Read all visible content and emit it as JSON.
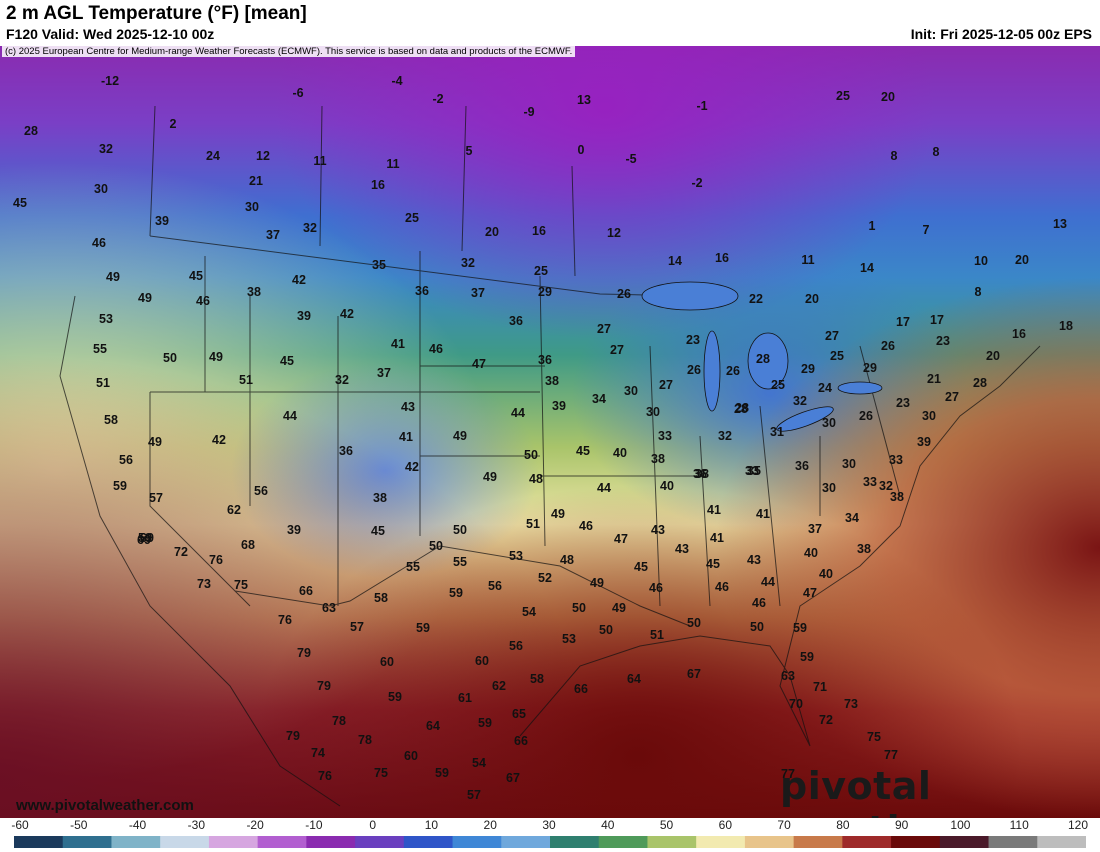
{
  "header": {
    "title": "2 m AGL Temperature (°F) [mean]",
    "valid": "F120 Valid: Wed 2025-12-10 00z",
    "init": "Init: Fri 2025-12-05 00z EPS",
    "copyright": "(c) 2025 European Centre for Medium-range Weather Forecasts (ECMWF). This service is based on data and products of the ECMWF."
  },
  "branding": {
    "site": "www.pivotalweather.com",
    "logo": "pivotal weather"
  },
  "legend": {
    "ticks": [
      "-60",
      "-50",
      "-40",
      "-30",
      "-20",
      "-10",
      "0",
      "10",
      "20",
      "30",
      "40",
      "50",
      "60",
      "70",
      "80",
      "90",
      "100",
      "110",
      "120"
    ],
    "colors": [
      "#1b3a5c",
      "#2f6f8f",
      "#7fb3c8",
      "#c8d8e8",
      "#d6a6e0",
      "#b25fd0",
      "#8a2bb0",
      "#6a3fbf",
      "#2f55c8",
      "#3f87d6",
      "#6fa8dc",
      "#2f7f6f",
      "#4f9a5a",
      "#a9c46a",
      "#f2eab0",
      "#e8c48a",
      "#c87a4a",
      "#9e2a2a",
      "#6a0a0a",
      "#4a1a2a",
      "#7a7a7a",
      "#bdbdbd"
    ]
  },
  "temps": [
    {
      "v": "-12"
    },
    {
      "v": "2"
    },
    {
      "v": "-6"
    },
    {
      "v": "-4"
    },
    {
      "v": "-2"
    },
    {
      "v": "-9"
    },
    {
      "v": "13"
    },
    {
      "v": "-1"
    },
    {
      "v": "25"
    },
    {
      "v": "20"
    },
    {
      "v": "28"
    },
    {
      "v": "32"
    },
    {
      "v": "24"
    },
    {
      "v": "12"
    },
    {
      "v": "11"
    },
    {
      "v": "11"
    },
    {
      "v": "5"
    },
    {
      "v": "0"
    },
    {
      "v": "-5"
    },
    {
      "v": "8"
    },
    {
      "v": "8"
    },
    {
      "v": "30"
    },
    {
      "v": "21"
    },
    {
      "v": "16"
    },
    {
      "v": "-2"
    },
    {
      "v": "45"
    },
    {
      "v": "30"
    },
    {
      "v": "39"
    },
    {
      "v": "25"
    },
    {
      "v": "20"
    },
    {
      "v": "16"
    },
    {
      "v": "12"
    },
    {
      "v": "1"
    },
    {
      "v": "7"
    },
    {
      "v": "13"
    },
    {
      "v": "37"
    },
    {
      "v": "32"
    },
    {
      "v": "46"
    },
    {
      "v": "16"
    },
    {
      "v": "14"
    },
    {
      "v": "11"
    },
    {
      "v": "14"
    },
    {
      "v": "10"
    },
    {
      "v": "20"
    },
    {
      "v": "49"
    },
    {
      "v": "45"
    },
    {
      "v": "42"
    },
    {
      "v": "35"
    },
    {
      "v": "32"
    },
    {
      "v": "25"
    },
    {
      "v": "49"
    },
    {
      "v": "38"
    },
    {
      "v": "36"
    },
    {
      "v": "37"
    },
    {
      "v": "29"
    },
    {
      "v": "26"
    },
    {
      "v": "22"
    },
    {
      "v": "20"
    },
    {
      "v": "8"
    },
    {
      "v": "53"
    },
    {
      "v": "46"
    },
    {
      "v": "39"
    },
    {
      "v": "42"
    },
    {
      "v": "36"
    },
    {
      "v": "27"
    },
    {
      "v": "17"
    },
    {
      "v": "17"
    },
    {
      "v": "55"
    },
    {
      "v": "50"
    },
    {
      "v": "49"
    },
    {
      "v": "45"
    },
    {
      "v": "41"
    },
    {
      "v": "46"
    },
    {
      "v": "36"
    },
    {
      "v": "27"
    },
    {
      "v": "23"
    },
    {
      "v": "27"
    },
    {
      "v": "23"
    },
    {
      "v": "16"
    },
    {
      "v": "18"
    },
    {
      "v": "51"
    },
    {
      "v": "51"
    },
    {
      "v": "32"
    },
    {
      "v": "37"
    },
    {
      "v": "47"
    },
    {
      "v": "26"
    },
    {
      "v": "28"
    },
    {
      "v": "26"
    },
    {
      "v": "25"
    },
    {
      "v": "26"
    },
    {
      "v": "20"
    },
    {
      "v": "58"
    },
    {
      "v": "44"
    },
    {
      "v": "43"
    },
    {
      "v": "38"
    },
    {
      "v": "30"
    },
    {
      "v": "27"
    },
    {
      "v": "29"
    },
    {
      "v": "28"
    },
    {
      "v": "25"
    },
    {
      "v": "29"
    },
    {
      "v": "21"
    },
    {
      "v": "28"
    },
    {
      "v": "49"
    },
    {
      "v": "42"
    },
    {
      "v": "41"
    },
    {
      "v": "49"
    },
    {
      "v": "44"
    },
    {
      "v": "39"
    },
    {
      "v": "34"
    },
    {
      "v": "30"
    },
    {
      "v": "28"
    },
    {
      "v": "32"
    },
    {
      "v": "24"
    },
    {
      "v": "23"
    },
    {
      "v": "27"
    },
    {
      "v": "56"
    },
    {
      "v": "36"
    },
    {
      "v": "42"
    },
    {
      "v": "50"
    },
    {
      "v": "45"
    },
    {
      "v": "40"
    },
    {
      "v": "33"
    },
    {
      "v": "32"
    },
    {
      "v": "31"
    },
    {
      "v": "30"
    },
    {
      "v": "26"
    },
    {
      "v": "30"
    },
    {
      "v": "59"
    },
    {
      "v": "49"
    },
    {
      "v": "48"
    },
    {
      "v": "38"
    },
    {
      "v": "38"
    },
    {
      "v": "33"
    },
    {
      "v": "35"
    },
    {
      "v": "36"
    },
    {
      "v": "30"
    },
    {
      "v": "33"
    },
    {
      "v": "39"
    },
    {
      "v": "57"
    },
    {
      "v": "56"
    },
    {
      "v": "38"
    },
    {
      "v": "44"
    },
    {
      "v": "40"
    },
    {
      "v": "36"
    },
    {
      "v": "30"
    },
    {
      "v": "33"
    },
    {
      "v": "32"
    },
    {
      "v": "62"
    },
    {
      "v": "39"
    },
    {
      "v": "45"
    },
    {
      "v": "50"
    },
    {
      "v": "51"
    },
    {
      "v": "49"
    },
    {
      "v": "46"
    },
    {
      "v": "41"
    },
    {
      "v": "41"
    },
    {
      "v": "34"
    },
    {
      "v": "38"
    },
    {
      "v": "59"
    },
    {
      "v": "69"
    },
    {
      "v": "72"
    },
    {
      "v": "76"
    },
    {
      "v": "68"
    },
    {
      "v": "50"
    },
    {
      "v": "47"
    },
    {
      "v": "43"
    },
    {
      "v": "43"
    },
    {
      "v": "41"
    },
    {
      "v": "37"
    },
    {
      "v": "69"
    },
    {
      "v": "55"
    },
    {
      "v": "55"
    },
    {
      "v": "53"
    },
    {
      "v": "48"
    },
    {
      "v": "45"
    },
    {
      "v": "45"
    },
    {
      "v": "43"
    },
    {
      "v": "40"
    },
    {
      "v": "38"
    },
    {
      "v": "73"
    },
    {
      "v": "75"
    },
    {
      "v": "66"
    },
    {
      "v": "52"
    },
    {
      "v": "49"
    },
    {
      "v": "46"
    },
    {
      "v": "46"
    },
    {
      "v": "44"
    },
    {
      "v": "40"
    },
    {
      "v": "63"
    },
    {
      "v": "58"
    },
    {
      "v": "59"
    },
    {
      "v": "56"
    },
    {
      "v": "54"
    },
    {
      "v": "50"
    },
    {
      "v": "49"
    },
    {
      "v": "46"
    },
    {
      "v": "47"
    },
    {
      "v": "76"
    },
    {
      "v": "57"
    },
    {
      "v": "59"
    },
    {
      "v": "53"
    },
    {
      "v": "50"
    },
    {
      "v": "51"
    },
    {
      "v": "50"
    },
    {
      "v": "50"
    },
    {
      "v": "59"
    },
    {
      "v": "79"
    },
    {
      "v": "60"
    },
    {
      "v": "60"
    },
    {
      "v": "56"
    },
    {
      "v": "59"
    },
    {
      "v": "79"
    },
    {
      "v": "59"
    },
    {
      "v": "61"
    },
    {
      "v": "62"
    },
    {
      "v": "58"
    },
    {
      "v": "66"
    },
    {
      "v": "64"
    },
    {
      "v": "67"
    },
    {
      "v": "63"
    },
    {
      "v": "71"
    },
    {
      "v": "78"
    },
    {
      "v": "64"
    },
    {
      "v": "59"
    },
    {
      "v": "65"
    },
    {
      "v": "70"
    },
    {
      "v": "72"
    },
    {
      "v": "73"
    },
    {
      "v": "79"
    },
    {
      "v": "78"
    },
    {
      "v": "74"
    },
    {
      "v": "60"
    },
    {
      "v": "54"
    },
    {
      "v": "66"
    },
    {
      "v": "75"
    },
    {
      "v": "76"
    },
    {
      "v": "75"
    },
    {
      "v": "59"
    },
    {
      "v": "67"
    },
    {
      "v": "77"
    },
    {
      "v": "77"
    },
    {
      "v": "57"
    }
  ]
}
